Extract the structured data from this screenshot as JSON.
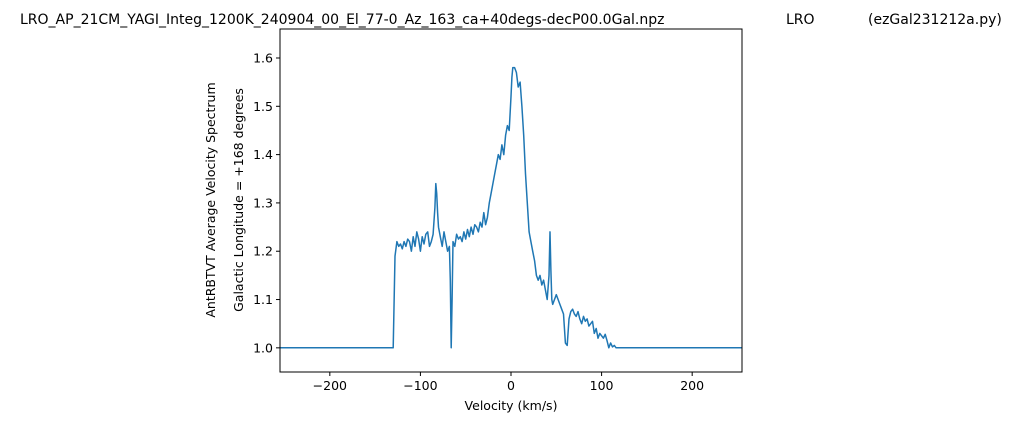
{
  "header": {
    "filename": "LRO_AP_21CM_YAGI_Integ_1200K_240904_00_El_77-0_Az_163_ca+40degs-decP00.0Gal.npz",
    "station": "LRO",
    "program": "(ezGal231212a.py)"
  },
  "chart_data": {
    "type": "line",
    "title": "",
    "xlabel": "Velocity (km/s)",
    "ylabel_line1": "AntRBTVT Average Velocity Spectrum",
    "ylabel_line2": "Galactic Longitude = +168 degrees",
    "xlim": [
      -255,
      255
    ],
    "ylim": [
      0.95,
      1.66
    ],
    "xticks": [
      -200,
      -100,
      0,
      100,
      200
    ],
    "xtick_labels": [
      "−200",
      "−100",
      "0",
      "100",
      "200"
    ],
    "yticks": [
      1.0,
      1.1,
      1.2,
      1.3,
      1.4,
      1.5,
      1.6
    ],
    "ytick_labels": [
      "1.0",
      "1.1",
      "1.2",
      "1.3",
      "1.4",
      "1.5",
      "1.6"
    ],
    "grid": false,
    "line_color": "#1f77b4",
    "series": [
      {
        "x": [
          -255,
          -130,
          -128,
          -126,
          -124,
          -122,
          -120,
          -118,
          -116,
          -114,
          -112,
          -110,
          -108,
          -106,
          -104,
          -102,
          -100,
          -98,
          -96,
          -94,
          -92,
          -90,
          -88,
          -86,
          -84,
          -83,
          -82,
          -81,
          -80,
          -78,
          -76,
          -74,
          -72,
          -70,
          -68,
          -67,
          -66,
          -65,
          -64,
          -62,
          -60,
          -58,
          -56,
          -54,
          -52,
          -50,
          -48,
          -46,
          -44,
          -42,
          -40,
          -38,
          -36,
          -34,
          -32,
          -30,
          -28,
          -26,
          -24,
          -22,
          -20,
          -18,
          -16,
          -14,
          -12,
          -10,
          -8,
          -6,
          -4,
          -2,
          0,
          1,
          2,
          4,
          6,
          8,
          10,
          12,
          14,
          16,
          18,
          20,
          22,
          24,
          26,
          28,
          30,
          32,
          34,
          36,
          38,
          40,
          42,
          43,
          44,
          45,
          46,
          48,
          50,
          52,
          54,
          56,
          58,
          60,
          62,
          64,
          66,
          68,
          70,
          72,
          74,
          76,
          78,
          80,
          82,
          84,
          86,
          88,
          90,
          92,
          94,
          96,
          98,
          100,
          102,
          104,
          106,
          108,
          110,
          112,
          114,
          116,
          118,
          120,
          255
        ],
        "y": [
          1.0,
          1.0,
          1.19,
          1.22,
          1.21,
          1.215,
          1.205,
          1.22,
          1.21,
          1.225,
          1.22,
          1.2,
          1.23,
          1.21,
          1.24,
          1.225,
          1.2,
          1.23,
          1.215,
          1.235,
          1.24,
          1.21,
          1.22,
          1.235,
          1.29,
          1.34,
          1.32,
          1.28,
          1.25,
          1.23,
          1.21,
          1.24,
          1.22,
          1.2,
          1.21,
          1.14,
          1.0,
          1.1,
          1.22,
          1.21,
          1.235,
          1.225,
          1.23,
          1.22,
          1.24,
          1.225,
          1.245,
          1.23,
          1.25,
          1.235,
          1.255,
          1.25,
          1.24,
          1.26,
          1.25,
          1.28,
          1.255,
          1.27,
          1.3,
          1.32,
          1.34,
          1.36,
          1.38,
          1.4,
          1.39,
          1.42,
          1.4,
          1.44,
          1.46,
          1.45,
          1.52,
          1.56,
          1.58,
          1.58,
          1.57,
          1.54,
          1.55,
          1.5,
          1.44,
          1.36,
          1.3,
          1.24,
          1.22,
          1.2,
          1.18,
          1.15,
          1.14,
          1.15,
          1.13,
          1.14,
          1.12,
          1.1,
          1.15,
          1.24,
          1.16,
          1.1,
          1.09,
          1.1,
          1.11,
          1.1,
          1.09,
          1.08,
          1.07,
          1.01,
          1.005,
          1.06,
          1.075,
          1.08,
          1.07,
          1.065,
          1.075,
          1.06,
          1.05,
          1.065,
          1.055,
          1.06,
          1.045,
          1.05,
          1.055,
          1.03,
          1.04,
          1.02,
          1.03,
          1.025,
          1.02,
          1.028,
          1.015,
          1.0,
          1.01,
          1.002,
          1.005,
          1.0,
          1.0,
          1.0,
          1.0
        ]
      }
    ]
  }
}
